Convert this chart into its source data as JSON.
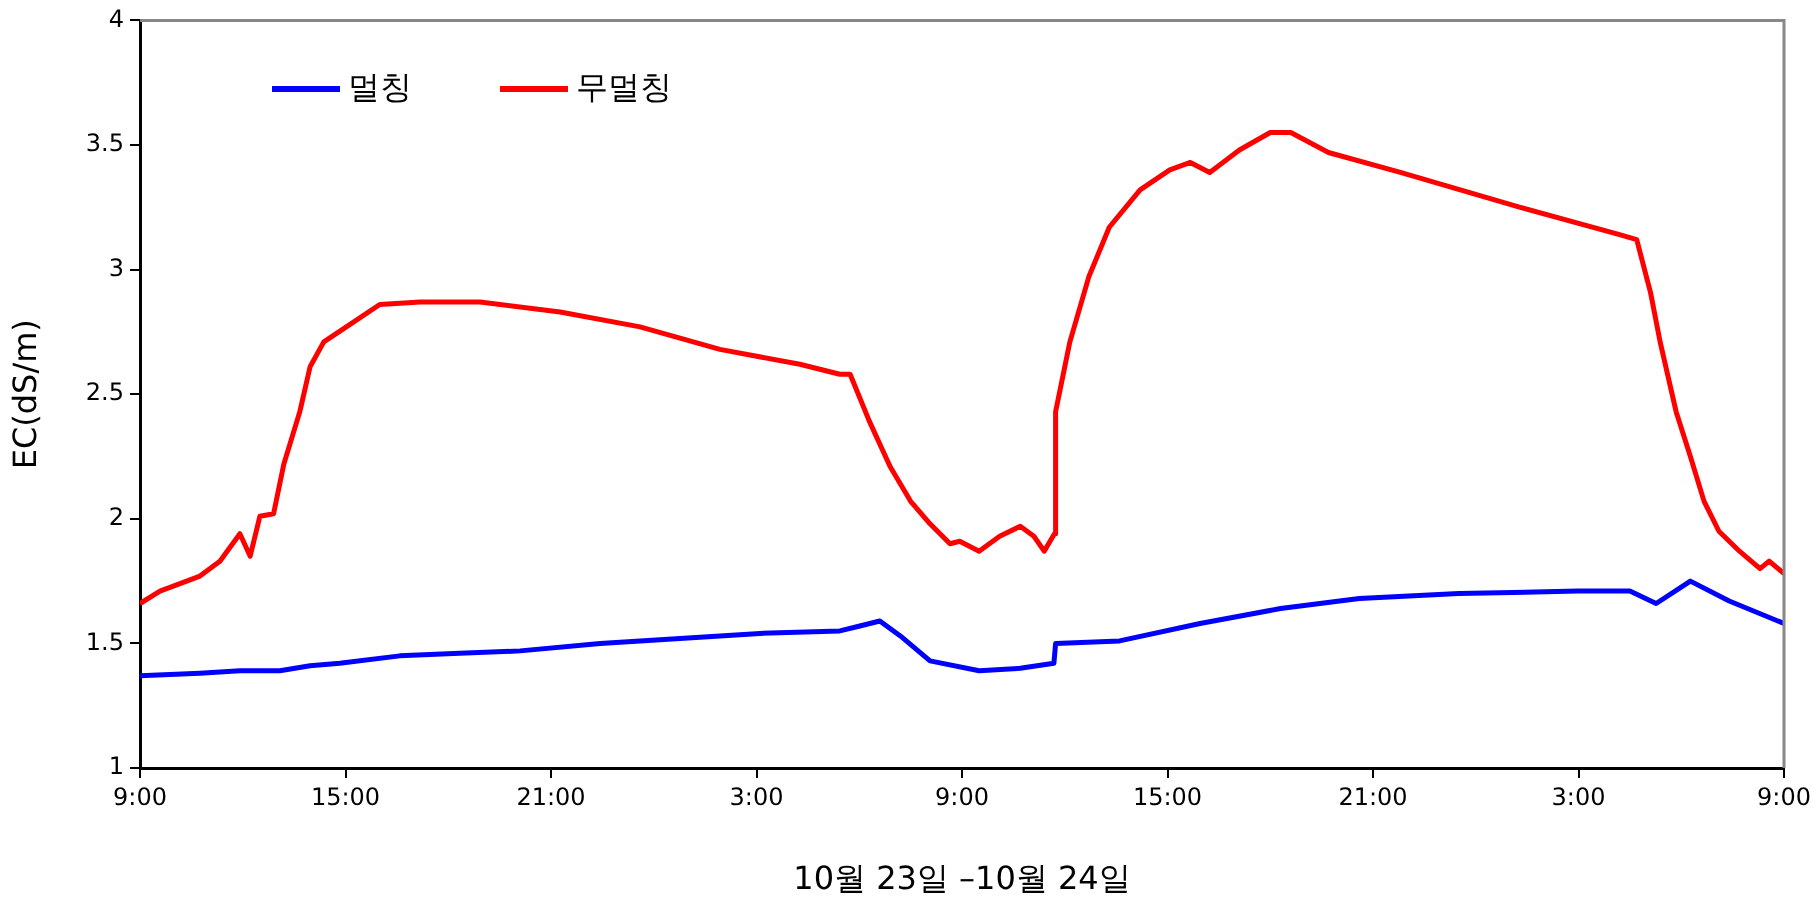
{
  "chart_data": {
    "type": "line",
    "xlabel": "10월 23일 –10월 24일",
    "ylabel": "EC(dS/m)",
    "xlim": [
      "--10-23T09:00",
      "--10-25T09:00"
    ],
    "xticks": [
      {
        "value": "--10-23T09:00",
        "label": "9:00"
      },
      {
        "value": "--10-23T15:00",
        "label": "15:00"
      },
      {
        "value": "--10-23T21:00",
        "label": "21:00"
      },
      {
        "value": "--10-24T03:00",
        "label": "3:00"
      },
      {
        "value": "--10-24T09:00",
        "label": "9:00"
      },
      {
        "value": "--10-24T15:00",
        "label": "15:00"
      },
      {
        "value": "--10-24T21:00",
        "label": "21:00"
      },
      {
        "value": "--10-25T03:00",
        "label": "3:00"
      },
      {
        "value": "--10-25T09:00",
        "label": "9:00"
      }
    ],
    "ylim": [
      1,
      4
    ],
    "yticks": [
      1,
      1.5,
      2,
      2.5,
      3,
      3.5,
      4
    ],
    "grid": false,
    "legend": "top left",
    "marker": "none",
    "line_style": "solid",
    "series": [
      {
        "name": "멀칭",
        "color": "#0000ff",
        "x": [
          "--10-23T09:00",
          "--10-23T10:45",
          "--10-23T11:55",
          "--10-23T13:05",
          "--10-23T13:58",
          "--10-23T14:50",
          "--10-23T16:35",
          "--10-23T18:20",
          "--10-23T20:06",
          "--10-23T22:26",
          "--10-24T00:46",
          "--10-24T03:06",
          "--10-24T05:26",
          "--10-24T06:01",
          "--10-24T06:36",
          "--10-24T07:12",
          "--10-24T08:04",
          "--10-24T09:30",
          "--10-24T10:42",
          "--10-24T11:41",
          "--10-24T11:44",
          "--10-24T13:36",
          "--10-24T15:57",
          "--10-24T18:18",
          "--10-24T20:36",
          "--10-24T23:30",
          "--10-25T03:00",
          "--10-25T04:30",
          "--10-25T05:16",
          "--10-25T06:16",
          "--10-25T07:24",
          "--10-25T09:00"
        ],
        "values": [
          1.37,
          1.38,
          1.39,
          1.39,
          1.41,
          1.42,
          1.45,
          1.46,
          1.47,
          1.5,
          1.52,
          1.54,
          1.55,
          1.57,
          1.59,
          1.53,
          1.43,
          1.39,
          1.4,
          1.42,
          1.5,
          1.51,
          1.58,
          1.64,
          1.68,
          1.7,
          1.71,
          1.71,
          1.66,
          1.75,
          1.67,
          1.58
        ]
      },
      {
        "name": "무멀칭",
        "color": "#ff0000",
        "x": [
          "--10-23T09:00",
          "--10-23T09:35",
          "--10-23T10:10",
          "--10-23T10:45",
          "--10-23T11:20",
          "--10-23T11:55",
          "--10-23T12:13",
          "--10-23T12:30",
          "--10-23T12:54",
          "--10-23T13:12",
          "--10-23T13:40",
          "--10-23T13:58",
          "--10-23T14:22",
          "--10-23T15:08",
          "--10-23T16:00",
          "--10-23T17:11",
          "--10-23T18:56",
          "--10-23T21:16",
          "--10-23T23:36",
          "--10-24T01:56",
          "--10-24T04:16",
          "--10-24T05:26",
          "--10-24T05:44",
          "--10-24T06:18",
          "--10-24T06:54",
          "--10-24T07:30",
          "--10-24T08:04",
          "--10-24T08:39",
          "--10-24T08:56",
          "--10-24T09:30",
          "--10-24T10:06",
          "--10-24T10:42",
          "--10-24T11:06",
          "--10-24T11:24",
          "--10-24T11:42",
          "--10-24T11:44",
          "--10-24T12:09",
          "--10-24T12:42",
          "--10-24T13:18",
          "--10-24T14:12",
          "--10-24T15:04",
          "--10-24T15:40",
          "--10-24T16:14",
          "--10-24T17:06",
          "--10-24T18:00",
          "--10-24T18:36",
          "--10-24T19:42",
          "--10-24T21:48",
          "--10-25T01:18",
          "--10-25T04:12",
          "--10-25T04:42",
          "--10-25T05:06",
          "--10-25T05:23",
          "--10-25T05:51",
          "--10-25T06:16",
          "--10-25T06:40",
          "--10-25T07:06",
          "--10-25T07:42",
          "--10-25T08:18",
          "--10-25T08:34",
          "--10-25T09:00"
        ],
        "values": [
          1.66,
          1.71,
          1.74,
          1.77,
          1.83,
          1.94,
          1.85,
          2.01,
          2.02,
          2.22,
          2.43,
          2.61,
          2.71,
          2.78,
          2.86,
          2.87,
          2.87,
          2.83,
          2.77,
          2.68,
          2.62,
          2.58,
          2.58,
          2.39,
          2.21,
          2.07,
          1.98,
          1.9,
          1.91,
          1.87,
          1.93,
          1.97,
          1.93,
          1.87,
          1.94,
          2.43,
          2.71,
          2.97,
          3.17,
          3.32,
          3.4,
          3.43,
          3.39,
          3.48,
          3.55,
          3.55,
          3.47,
          3.39,
          3.25,
          3.14,
          3.12,
          2.91,
          2.71,
          2.43,
          2.25,
          2.07,
          1.95,
          1.87,
          1.8,
          1.83,
          1.78
        ]
      }
    ]
  }
}
